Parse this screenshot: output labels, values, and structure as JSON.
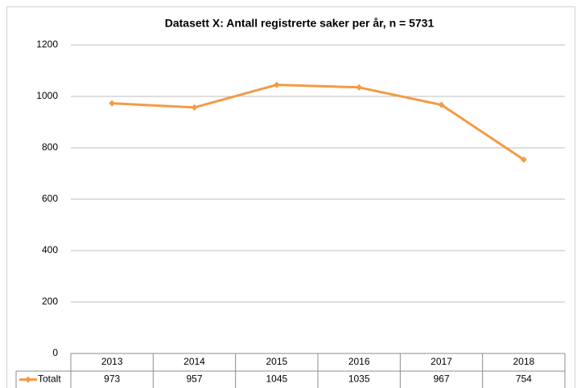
{
  "chart_data": {
    "type": "line",
    "title": "Datasett X: Antall registrerte saker per år, n = 5731",
    "categories": [
      "2013",
      "2014",
      "2015",
      "2016",
      "2017",
      "2018"
    ],
    "series": [
      {
        "name": "Totalt",
        "color": "#f39b45",
        "values": [
          973,
          957,
          1045,
          1035,
          967,
          754
        ]
      }
    ],
    "ylim": [
      0,
      1200
    ],
    "yticks": [
      0,
      200,
      400,
      600,
      800,
      1000,
      1200
    ],
    "grid": true
  }
}
